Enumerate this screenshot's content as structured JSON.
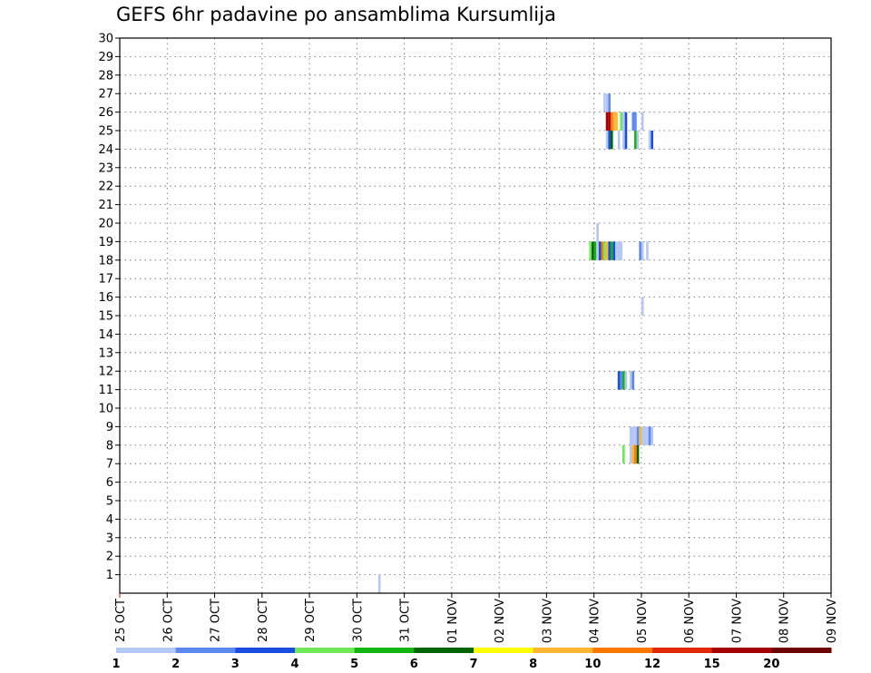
{
  "chart_data": {
    "type": "heatmap",
    "title": "GEFS 6hr padavine po ansamblima Kursumlija",
    "xlabel": "",
    "ylabel": "",
    "x_tick_labels": [
      "25 OCT",
      "26 OCT",
      "27 OCT",
      "28 OCT",
      "29 OCT",
      "30 OCT",
      "31 OCT",
      "01 NOV",
      "02 NOV",
      "03 NOV",
      "04 NOV",
      "05 NOV",
      "06 NOV",
      "07 NOV",
      "08 NOV",
      "09 NOV"
    ],
    "x_range_days": [
      0,
      15
    ],
    "steps_per_day": 4,
    "y_ticks": [
      1,
      2,
      3,
      4,
      5,
      6,
      7,
      8,
      9,
      10,
      11,
      12,
      13,
      14,
      15,
      16,
      17,
      18,
      19,
      20,
      21,
      22,
      23,
      24,
      25,
      26,
      27,
      28,
      29,
      30
    ],
    "ylim": [
      0,
      30
    ],
    "grid": true,
    "legend": {
      "placement": "bottom",
      "labels": [
        "1",
        "2",
        "3",
        "4",
        "5",
        "6",
        "7",
        "8",
        "10",
        "12",
        "15",
        "20"
      ],
      "colors": [
        "#b4c7f5",
        "#5a8af0",
        "#1a4ee0",
        "#6ee855",
        "#12b412",
        "#006400",
        "#ffff00",
        "#ffb432",
        "#ff7800",
        "#e12800",
        "#a50000",
        "#6e0000"
      ]
    },
    "color_values": {
      "#b4c7f5": 1.5,
      "#5a8af0": 2.5,
      "#1a4ee0": 3.5,
      "#6ee855": 4.5,
      "#12b412": 5.5,
      "#ff7800": 11,
      "#ffb432": 9,
      "#a50000": 17.5,
      "#006400": 6.5
    },
    "cells": [
      {
        "member": 0,
        "t": [
          [
            21.8,
            22.0,
            1.5
          ]
        ]
      },
      {
        "member": 26,
        "t": [
          [
            40.8,
            41.0,
            1.5
          ],
          [
            41.0,
            41.2,
            1.5
          ],
          [
            41.2,
            41.4,
            2.5
          ]
        ]
      },
      {
        "member": 25,
        "t": [
          [
            41.0,
            41.2,
            17.5
          ],
          [
            41.2,
            41.4,
            17.5
          ],
          [
            41.4,
            41.6,
            11
          ],
          [
            41.6,
            41.8,
            9
          ],
          [
            41.8,
            42.0,
            9
          ],
          [
            42.2,
            42.4,
            4.5
          ],
          [
            42.4,
            42.6,
            1.5
          ],
          [
            42.6,
            42.8,
            3.5
          ],
          [
            43.2,
            43.4,
            2.5
          ],
          [
            43.4,
            43.6,
            2.5
          ],
          [
            44.0,
            44.2,
            1.5
          ]
        ]
      },
      {
        "member": 24,
        "t": [
          [
            41.0,
            41.2,
            1.5
          ],
          [
            41.2,
            41.4,
            3.5
          ],
          [
            41.4,
            41.6,
            6.5
          ],
          [
            42.0,
            42.2,
            1.5
          ],
          [
            42.4,
            42.6,
            1.5
          ],
          [
            42.6,
            42.8,
            3.5
          ],
          [
            43.4,
            43.6,
            5.5
          ],
          [
            43.6,
            43.8,
            1.5
          ],
          [
            44.6,
            44.8,
            1.5
          ],
          [
            44.8,
            45.0,
            3.5
          ]
        ]
      },
      {
        "member": 19,
        "t": [
          [
            40.2,
            40.4,
            1.5
          ]
        ]
      },
      {
        "member": 18,
        "t": [
          [
            39.6,
            39.8,
            4.5
          ],
          [
            39.8,
            40.0,
            6.5
          ],
          [
            40.0,
            40.2,
            5.5
          ],
          [
            40.2,
            40.4,
            1.5
          ],
          [
            40.4,
            40.6,
            3.5
          ],
          [
            40.6,
            40.8,
            11
          ],
          [
            40.8,
            41.0,
            4.5
          ],
          [
            41.0,
            41.2,
            9
          ],
          [
            41.2,
            41.4,
            3.5
          ],
          [
            41.4,
            41.6,
            5.5
          ],
          [
            41.6,
            41.8,
            3.5
          ],
          [
            41.8,
            42.0,
            1.5
          ],
          [
            42.0,
            42.2,
            1.5
          ],
          [
            42.2,
            42.4,
            1.5
          ],
          [
            43.8,
            44.0,
            2.5
          ],
          [
            44.0,
            44.2,
            1.5
          ],
          [
            44.4,
            44.6,
            1.5
          ]
        ]
      },
      {
        "member": 15,
        "t": [
          [
            44.0,
            44.2,
            1.5
          ]
        ]
      },
      {
        "member": 11,
        "t": [
          [
            42.0,
            42.2,
            3.5
          ],
          [
            42.2,
            42.4,
            2.5
          ],
          [
            42.4,
            42.6,
            5.5
          ],
          [
            42.6,
            42.8,
            1.5
          ],
          [
            43.0,
            43.2,
            1.5
          ],
          [
            43.2,
            43.4,
            2.5
          ]
        ]
      },
      {
        "member": 8,
        "t": [
          [
            43.0,
            43.2,
            1.5
          ],
          [
            43.2,
            43.4,
            1.5
          ],
          [
            43.4,
            43.6,
            1.5
          ],
          [
            43.6,
            43.8,
            2.5
          ],
          [
            43.8,
            44.0,
            9
          ],
          [
            44.0,
            44.2,
            1.5
          ],
          [
            44.2,
            44.4,
            1.5
          ],
          [
            44.4,
            44.6,
            1.5
          ],
          [
            44.6,
            44.8,
            2.5
          ],
          [
            44.8,
            45.0,
            1.5
          ]
        ]
      },
      {
        "member": 7,
        "t": [
          [
            42.4,
            42.6,
            4.5
          ],
          [
            43.0,
            43.2,
            1.5
          ],
          [
            43.2,
            43.4,
            9
          ],
          [
            43.4,
            43.6,
            11
          ],
          [
            43.6,
            43.8,
            6.5
          ]
        ]
      }
    ]
  }
}
